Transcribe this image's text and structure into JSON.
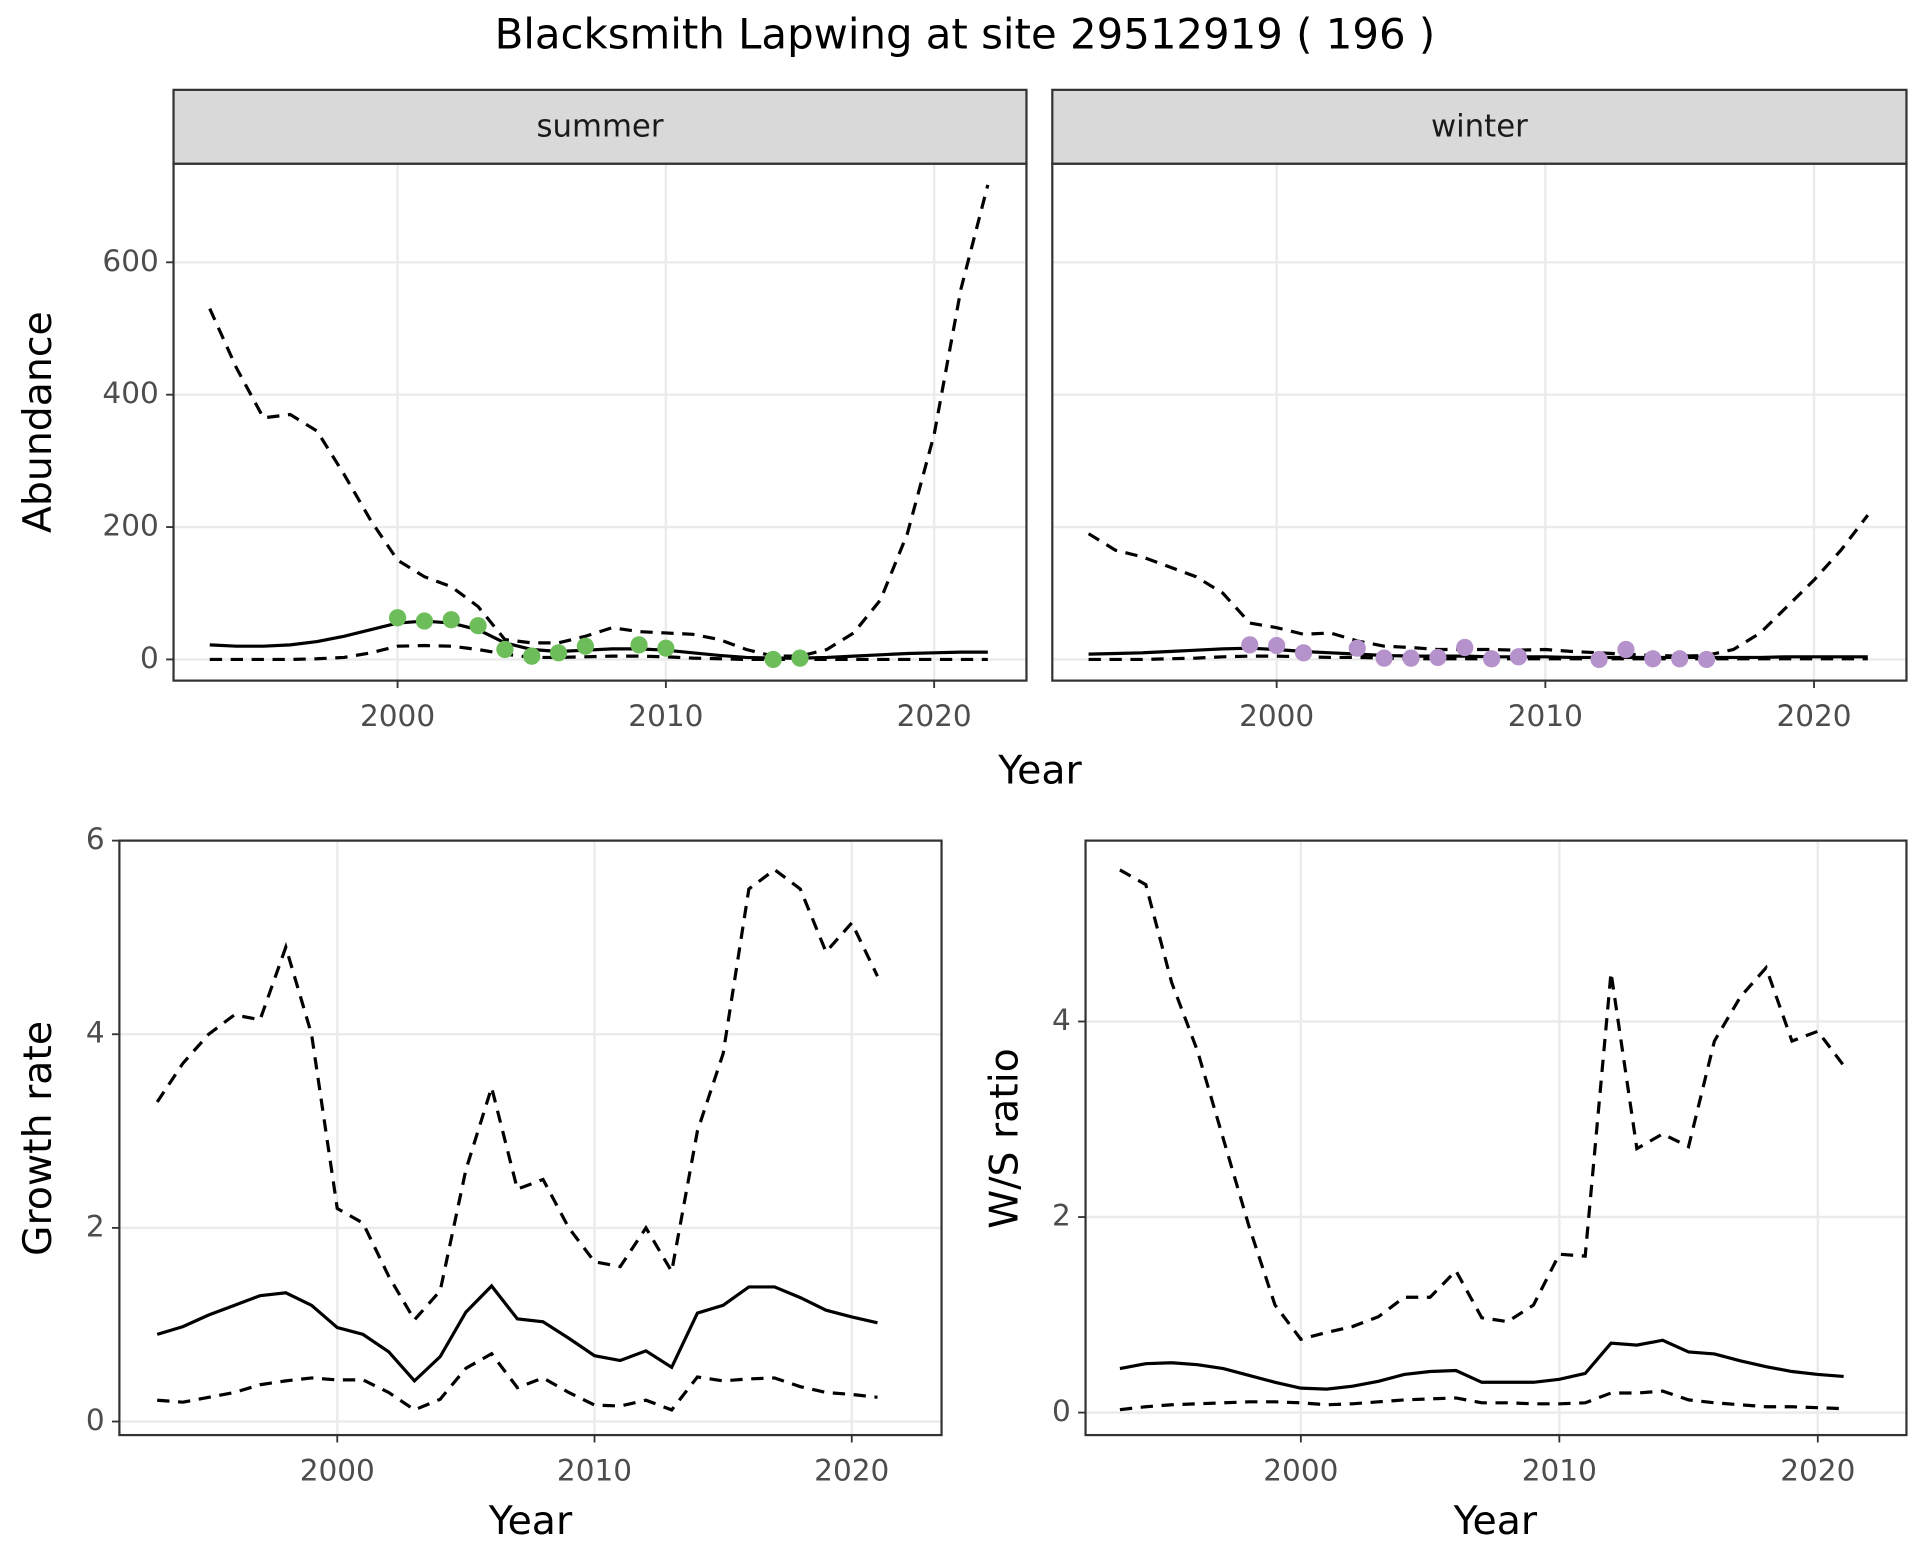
{
  "title": "Blacksmith Lapwing at site 29512919 ( 196 )",
  "chart_data": [
    {
      "type": "line",
      "title": "summer",
      "x_label": "Year",
      "y_label": "Abundance",
      "xlim": [
        1991.65,
        2023.44
      ],
      "ylim": [
        -32,
        749
      ],
      "xticks": [
        2000,
        2010,
        2020
      ],
      "yticks": [
        0,
        200,
        400,
        600
      ],
      "ytick_labels": true,
      "grid": true,
      "series": [
        {
          "color": "#000000",
          "dash": true,
          "x": [
            1993,
            1994,
            1995,
            1996,
            1997,
            1998,
            1999,
            2000,
            2001,
            2002,
            2003,
            2004,
            2005,
            2006,
            2007,
            2008,
            2009,
            2010,
            2011,
            2012,
            2013,
            2014,
            2015,
            2016,
            2017,
            2018,
            2019,
            2020,
            2021,
            2022
          ],
          "values": [
            530,
            440,
            365,
            370,
            345,
            280,
            210,
            150,
            125,
            110,
            80,
            30,
            25,
            25,
            35,
            48,
            42,
            40,
            38,
            30,
            15,
            5,
            5,
            15,
            40,
            90,
            190,
            340,
            560,
            717
          ]
        },
        {
          "color": "#000000",
          "dash": false,
          "x": [
            1993,
            1994,
            1995,
            1996,
            1997,
            1998,
            1999,
            2000,
            2001,
            2002,
            2003,
            2004,
            2005,
            2006,
            2007,
            2008,
            2009,
            2010,
            2011,
            2012,
            2013,
            2014,
            2015,
            2016,
            2017,
            2018,
            2019,
            2020,
            2021,
            2022
          ],
          "values": [
            22,
            20,
            20,
            22,
            27,
            35,
            45,
            55,
            58,
            55,
            45,
            25,
            15,
            12,
            14,
            16,
            16,
            14,
            10,
            6,
            3,
            2,
            2,
            3,
            5,
            7,
            9,
            10,
            11,
            11
          ]
        },
        {
          "color": "#000000",
          "dash": true,
          "x": [
            1993,
            1994,
            1995,
            1996,
            1997,
            1998,
            1999,
            2000,
            2001,
            2002,
            2003,
            2004,
            2005,
            2006,
            2007,
            2008,
            2009,
            2010,
            2011,
            2012,
            2013,
            2014,
            2015,
            2016,
            2017,
            2018,
            2019,
            2020,
            2021,
            2022
          ],
          "values": [
            0,
            0,
            0,
            0,
            1,
            3,
            10,
            20,
            21,
            20,
            15,
            8,
            3,
            3,
            4,
            5,
            5,
            4,
            2,
            1,
            0,
            0,
            0,
            0,
            0,
            0,
            0,
            0,
            0,
            0
          ]
        },
        {
          "type": "scatter",
          "color": "#6dbe5b",
          "x": [
            2000,
            2001,
            2002,
            2003,
            2004,
            2005,
            2006,
            2007,
            2009,
            2010,
            2014,
            2015
          ],
          "values": [
            63,
            58,
            60,
            51,
            15,
            5,
            10,
            20,
            22,
            17,
            0,
            2
          ]
        }
      ]
    },
    {
      "type": "line",
      "title": "winter",
      "xlim": [
        1991.65,
        2023.44
      ],
      "ylim": [
        -32,
        749
      ],
      "xticks": [
        2000,
        2010,
        2020
      ],
      "yticks": [
        0,
        200,
        400,
        600
      ],
      "ytick_labels": false,
      "grid": true,
      "series": [
        {
          "color": "#000000",
          "dash": true,
          "x": [
            1993,
            1994,
            1995,
            1996,
            1997,
            1998,
            1999,
            2000,
            2001,
            2002,
            2003,
            2004,
            2005,
            2006,
            2007,
            2008,
            2009,
            2010,
            2011,
            2012,
            2013,
            2014,
            2015,
            2016,
            2017,
            2018,
            2019,
            2020,
            2021,
            2022
          ],
          "values": [
            190,
            165,
            155,
            140,
            125,
            100,
            55,
            48,
            38,
            40,
            28,
            20,
            18,
            15,
            15,
            15,
            14,
            15,
            12,
            10,
            8,
            6,
            5,
            6,
            15,
            40,
            80,
            120,
            165,
            218
          ]
        },
        {
          "color": "#000000",
          "dash": false,
          "x": [
            1993,
            1994,
            1995,
            1996,
            1997,
            1998,
            1999,
            2000,
            2001,
            2002,
            2003,
            2004,
            2005,
            2006,
            2007,
            2008,
            2009,
            2010,
            2011,
            2012,
            2013,
            2014,
            2015,
            2016,
            2017,
            2018,
            2019,
            2020,
            2021,
            2022
          ],
          "values": [
            8,
            9,
            10,
            12,
            14,
            16,
            17,
            15,
            12,
            10,
            8,
            6,
            5,
            5,
            5,
            4,
            4,
            4,
            3,
            3,
            3,
            3,
            3,
            3,
            3,
            3,
            4,
            4,
            4,
            4
          ]
        },
        {
          "color": "#000000",
          "dash": true,
          "x": [
            1993,
            1994,
            1995,
            1996,
            1997,
            1998,
            1999,
            2000,
            2001,
            2002,
            2003,
            2004,
            2005,
            2006,
            2007,
            2008,
            2009,
            2010,
            2011,
            2012,
            2013,
            2014,
            2015,
            2016,
            2017,
            2018,
            2019,
            2020,
            2021,
            2022
          ],
          "values": [
            0,
            0,
            0,
            1,
            2,
            4,
            5,
            5,
            4,
            3,
            3,
            2,
            1,
            1,
            1,
            1,
            1,
            1,
            1,
            1,
            1,
            1,
            1,
            1,
            1,
            1,
            1,
            1,
            1,
            1
          ]
        },
        {
          "type": "scatter",
          "color": "#b592cb",
          "x": [
            1999,
            2000,
            2001,
            2003,
            2004,
            2005,
            2006,
            2007,
            2008,
            2009,
            2012,
            2013,
            2014,
            2015,
            2016
          ],
          "values": [
            22,
            21,
            10,
            17,
            2,
            2,
            3,
            18,
            1,
            4,
            0,
            15,
            1,
            1,
            0
          ]
        }
      ]
    },
    {
      "type": "line",
      "x_label": "Year",
      "y_label": "Growth rate",
      "xlim": [
        1991.53,
        2023.49
      ],
      "ylim": [
        -0.14,
        6
      ],
      "xticks": [
        2000,
        2010,
        2020
      ],
      "yticks": [
        0,
        2,
        4,
        6
      ],
      "ytick_labels": true,
      "grid": true,
      "series": [
        {
          "color": "#000000",
          "dash": true,
          "x": [
            1993,
            1994,
            1995,
            1996,
            1997,
            1998,
            1999,
            2000,
            2001,
            2002,
            2003,
            2004,
            2005,
            2006,
            2007,
            2008,
            2009,
            2010,
            2011,
            2012,
            2013,
            2014,
            2015,
            2016,
            2017,
            2018,
            2019,
            2020,
            2021
          ],
          "values": [
            3.3,
            3.7,
            4.0,
            4.2,
            4.15,
            4.9,
            4.0,
            2.2,
            2.05,
            1.5,
            1.05,
            1.35,
            2.6,
            3.45,
            2.4,
            2.5,
            2.0,
            1.65,
            1.6,
            2.0,
            1.55,
            3.0,
            3.8,
            5.5,
            5.7,
            5.5,
            4.85,
            5.15,
            4.6
          ]
        },
        {
          "color": "#000000",
          "dash": false,
          "x": [
            1993,
            1994,
            1995,
            1996,
            1997,
            1998,
            1999,
            2000,
            2001,
            2002,
            2003,
            2004,
            2005,
            2006,
            2007,
            2008,
            2009,
            2010,
            2011,
            2012,
            2013,
            2014,
            2015,
            2016,
            2017,
            2018,
            2019,
            2020,
            2021
          ],
          "values": [
            0.9,
            0.98,
            1.1,
            1.2,
            1.3,
            1.33,
            1.2,
            0.97,
            0.9,
            0.72,
            0.42,
            0.67,
            1.13,
            1.4,
            1.06,
            1.03,
            0.86,
            0.68,
            0.63,
            0.73,
            0.56,
            1.12,
            1.2,
            1.39,
            1.39,
            1.28,
            1.15,
            1.08,
            1.02
          ]
        },
        {
          "color": "#000000",
          "dash": true,
          "x": [
            1993,
            1994,
            1995,
            1996,
            1997,
            1998,
            1999,
            2000,
            2001,
            2002,
            2003,
            2004,
            2005,
            2006,
            2007,
            2008,
            2009,
            2010,
            2011,
            2012,
            2013,
            2014,
            2015,
            2016,
            2017,
            2018,
            2019,
            2020,
            2021
          ],
          "values": [
            0.22,
            0.2,
            0.25,
            0.3,
            0.38,
            0.42,
            0.45,
            0.43,
            0.43,
            0.3,
            0.12,
            0.23,
            0.55,
            0.7,
            0.35,
            0.45,
            0.3,
            0.17,
            0.16,
            0.22,
            0.12,
            0.46,
            0.42,
            0.44,
            0.45,
            0.36,
            0.3,
            0.28,
            0.25
          ]
        }
      ]
    },
    {
      "type": "line",
      "x_label": "Year",
      "y_label": "W/S ratio",
      "xlim": [
        1991.67,
        2023.43
      ],
      "ylim": [
        -0.23,
        5.85
      ],
      "xticks": [
        2000,
        2010,
        2020
      ],
      "yticks": [
        0,
        2,
        4
      ],
      "ytick_labels": true,
      "grid": true,
      "series": [
        {
          "color": "#000000",
          "dash": true,
          "x": [
            1993,
            1994,
            1995,
            1996,
            1997,
            1998,
            1999,
            2000,
            2001,
            2002,
            2003,
            2004,
            2005,
            2006,
            2007,
            2008,
            2009,
            2010,
            2011,
            2012,
            2013,
            2014,
            2015,
            2016,
            2017,
            2018,
            2019,
            2020,
            2021
          ],
          "values": [
            5.55,
            5.4,
            4.4,
            3.7,
            2.8,
            1.9,
            1.1,
            0.75,
            0.82,
            0.88,
            0.98,
            1.18,
            1.18,
            1.45,
            0.97,
            0.93,
            1.1,
            1.62,
            1.6,
            4.5,
            2.7,
            2.85,
            2.72,
            3.8,
            4.25,
            4.55,
            3.8,
            3.9,
            3.55
          ]
        },
        {
          "color": "#000000",
          "dash": false,
          "x": [
            1993,
            1994,
            1995,
            1996,
            1997,
            1998,
            1999,
            2000,
            2001,
            2002,
            2003,
            2004,
            2005,
            2006,
            2007,
            2008,
            2009,
            2010,
            2011,
            2012,
            2013,
            2014,
            2015,
            2016,
            2017,
            2018,
            2019,
            2020,
            2021
          ],
          "values": [
            0.45,
            0.5,
            0.51,
            0.49,
            0.45,
            0.38,
            0.31,
            0.25,
            0.24,
            0.27,
            0.32,
            0.39,
            0.42,
            0.43,
            0.31,
            0.31,
            0.31,
            0.34,
            0.4,
            0.71,
            0.69,
            0.74,
            0.62,
            0.6,
            0.53,
            0.47,
            0.42,
            0.39,
            0.37
          ]
        },
        {
          "color": "#000000",
          "dash": true,
          "x": [
            1993,
            1994,
            1995,
            1996,
            1997,
            1998,
            1999,
            2000,
            2001,
            2002,
            2003,
            2004,
            2005,
            2006,
            2007,
            2008,
            2009,
            2010,
            2011,
            2012,
            2013,
            2014,
            2015,
            2016,
            2017,
            2018,
            2019,
            2020,
            2021
          ],
          "values": [
            0.03,
            0.06,
            0.08,
            0.09,
            0.1,
            0.11,
            0.11,
            0.1,
            0.08,
            0.09,
            0.11,
            0.13,
            0.14,
            0.15,
            0.1,
            0.1,
            0.09,
            0.09,
            0.1,
            0.2,
            0.2,
            0.22,
            0.13,
            0.1,
            0.08,
            0.06,
            0.06,
            0.05,
            0.04
          ]
        }
      ]
    }
  ]
}
